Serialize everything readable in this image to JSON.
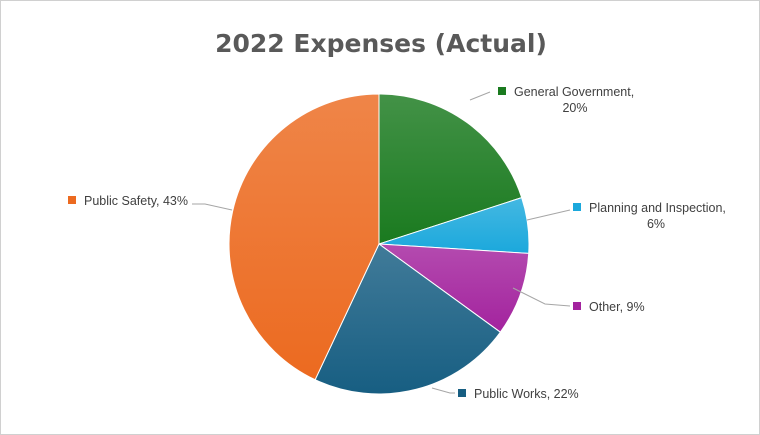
{
  "chart_data": {
    "type": "pie",
    "title": "2022 Expenses (Actual)",
    "slices": [
      {
        "name": "General Government",
        "value": 20,
        "label_lines": [
          "General Government,",
          "20%"
        ],
        "color": "#1a7a1f"
      },
      {
        "name": "Planning and Inspection",
        "value": 6,
        "label_lines": [
          "Planning and Inspection,",
          "6%"
        ],
        "color": "#1ba8dc"
      },
      {
        "name": "Other",
        "value": 9,
        "label_lines": [
          "Other, 9%"
        ],
        "color": "#a3239e"
      },
      {
        "name": "Public Works",
        "value": 22,
        "label_lines": [
          "Public Works, 22%"
        ],
        "color": "#175e82"
      },
      {
        "name": "Public Safety",
        "value": 43,
        "label_lines": [
          "Public Safety, 43%"
        ],
        "color": "#ec6a20"
      }
    ],
    "start_angle_deg": 0,
    "direction": "clockwise",
    "labels_outside_with_leader_lines": true
  }
}
